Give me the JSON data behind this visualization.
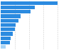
{
  "values": [
    80,
    48,
    42,
    28,
    25,
    21,
    20,
    17,
    14,
    13,
    7
  ],
  "bar_color": "#2b8be0",
  "last_bar_color": "#a8d4f5",
  "background_color": "#ffffff",
  "grid_color": "#cccccc",
  "figsize": [
    1.0,
    0.71
  ],
  "dpi": 100
}
